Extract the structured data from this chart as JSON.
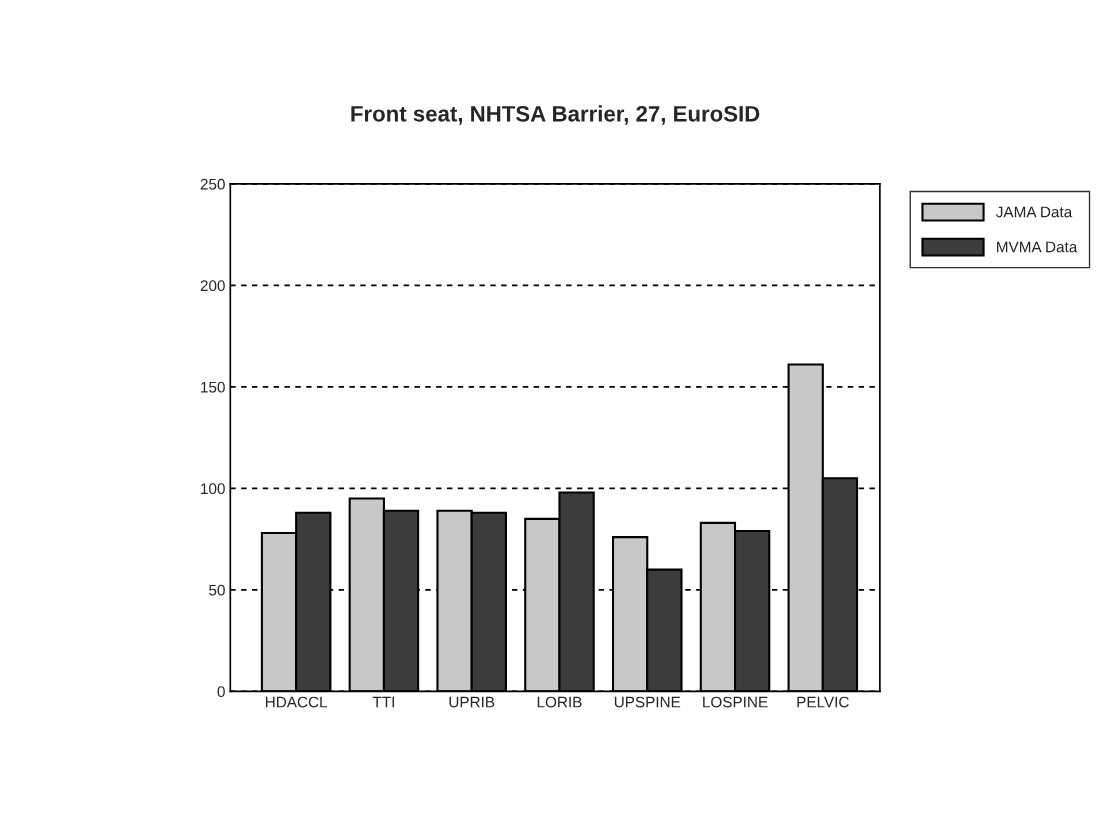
{
  "chart_data": {
    "type": "bar",
    "title": "Front seat, NHTSA Barrier, 27, EuroSID",
    "categories": [
      "HDACCL",
      "TTI",
      "UPRIB",
      "LORIB",
      "UPSPINE",
      "LOSPINE",
      "PELVIC"
    ],
    "series": [
      {
        "name": "JAMA Data",
        "color": "#c8c8c8",
        "values": [
          78,
          95,
          89,
          85,
          76,
          83,
          161
        ]
      },
      {
        "name": "MVMA Data",
        "color": "#3c3c3c",
        "values": [
          88,
          89,
          88,
          98,
          60,
          79,
          105
        ]
      }
    ],
    "ylim": [
      0,
      250
    ],
    "yticks": [
      0,
      50,
      100,
      150,
      200,
      250
    ],
    "grid": "y",
    "legend": "top right"
  }
}
